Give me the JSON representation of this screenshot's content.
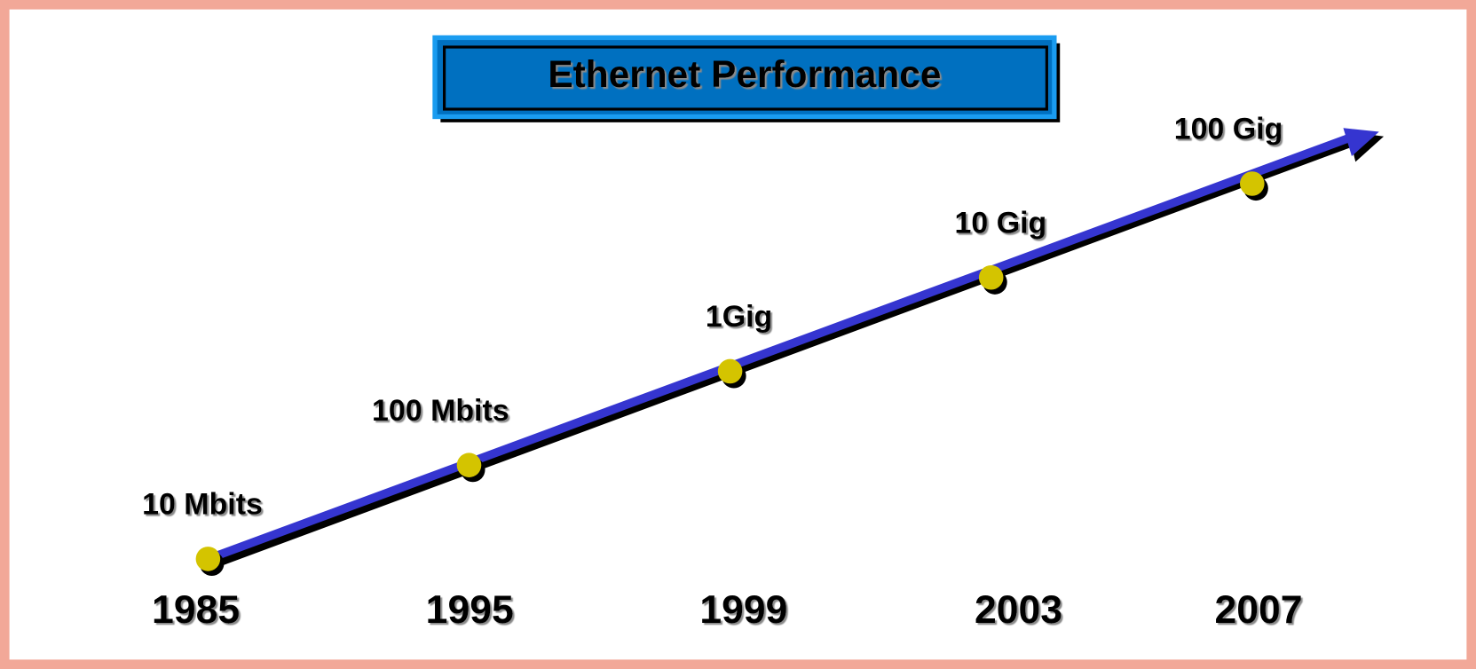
{
  "title": "Ethernet Performance",
  "milestones": [
    {
      "speed": "10 Mbits",
      "year": "1985"
    },
    {
      "speed": "100 Mbits",
      "year": "1995"
    },
    {
      "speed": "1Gig",
      "year": "1999"
    },
    {
      "speed": "10 Gig",
      "year": "2003"
    },
    {
      "speed": "100 Gig",
      "year": "2007"
    }
  ]
}
